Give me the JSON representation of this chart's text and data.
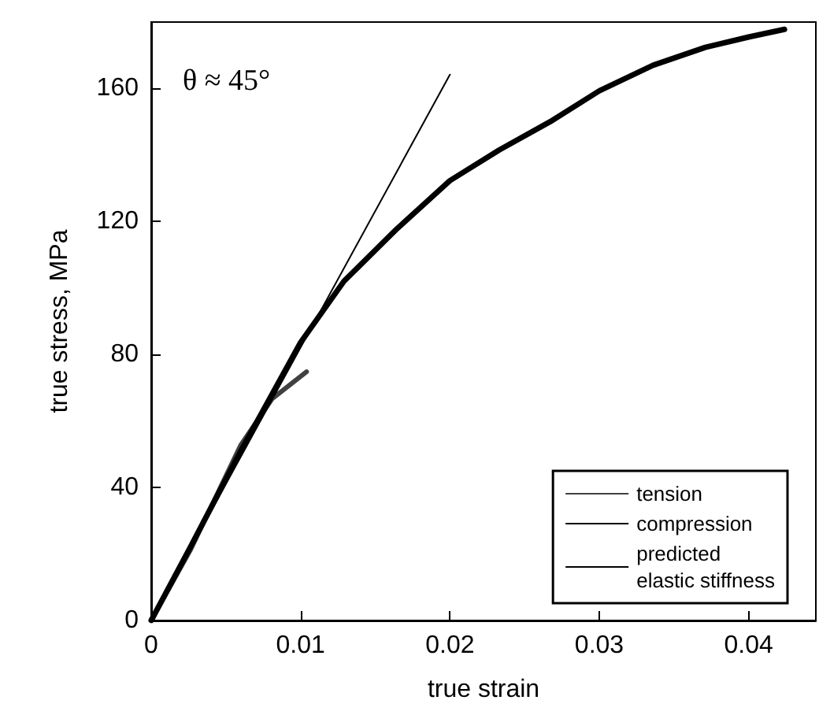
{
  "chart_data": {
    "type": "line",
    "xlabel": "true strain",
    "ylabel": "true stress, MPa",
    "annotations": [
      "θ ≈ 45°"
    ],
    "xlim": [
      0,
      0.0445
    ],
    "xticks": [
      0,
      0.01,
      0.02,
      0.03,
      0.04
    ],
    "ylim": [
      0,
      180
    ],
    "yticks": [
      0,
      40,
      80,
      120,
      160
    ],
    "grid": false,
    "legend": "bottom right",
    "marker": "none",
    "line_style": "solid",
    "series": [
      {
        "name": "tension",
        "color": "#404040",
        "x": [
          0,
          0.0026,
          0.006,
          0.0081,
          0.0104
        ],
        "values": [
          0,
          21,
          52.8,
          66.7,
          74.8
        ]
      },
      {
        "name": "compression",
        "color": "#000000",
        "x": [
          0,
          0.0026,
          0.006,
          0.01,
          0.0129,
          0.0164,
          0.02,
          0.0233,
          0.0267,
          0.03,
          0.0336,
          0.0371,
          0.04,
          0.0424
        ],
        "values": [
          0,
          21.9,
          51,
          83.6,
          102,
          117.6,
          132.3,
          141.5,
          150,
          159.3,
          167,
          172.4,
          175.5,
          177.8
        ]
      },
      {
        "name": "predicted\nelastic stiffness",
        "color": "#000000",
        "x": [
          0,
          0.02
        ],
        "values": [
          0,
          164.2
        ]
      }
    ]
  }
}
